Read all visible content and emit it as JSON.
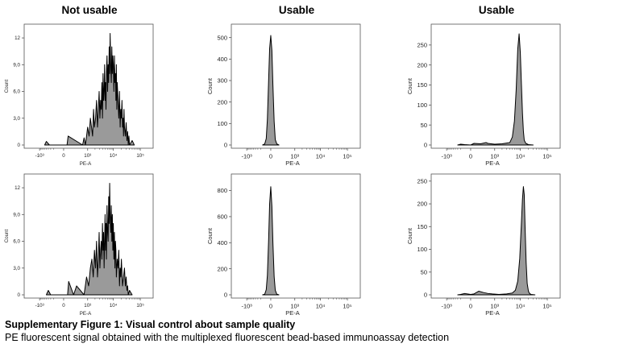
{
  "columns": [
    "Not usable",
    "Usable",
    "Usable"
  ],
  "caption": {
    "title": "Supplementary Figure 1: Visual control about sample quality",
    "subtitle": "PE fluorescent signal obtained with the multiplexed fluorescent bead-based immunoassay detection"
  },
  "colors": {
    "fill": "#9a9a9a",
    "stroke": "#000000",
    "frame": "#555555"
  },
  "chart_data": [
    {
      "type": "area",
      "panel": "row1-col1",
      "xlabel": "PE-A",
      "ylabel": "Count",
      "xticks": [
        {
          "pos": -1000,
          "label": "-10³"
        },
        {
          "pos": 0,
          "label": "0"
        },
        {
          "pos": 1000,
          "label": "10³"
        },
        {
          "pos": 10000,
          "label": "10⁴"
        },
        {
          "pos": 100000,
          "label": "10⁵"
        }
      ],
      "yticks": [
        {
          "v": 0,
          "label": "0"
        },
        {
          "v": 3,
          "label": "3,0"
        },
        {
          "v": 6,
          "label": "6,0"
        },
        {
          "v": 9,
          "label": "9,0"
        },
        {
          "v": 12,
          "label": "12"
        }
      ],
      "xlim": [
        -2000,
        150000
      ],
      "ylim": [
        0,
        13
      ],
      "x": [
        -600,
        -500,
        -350,
        50,
        70,
        600,
        700,
        800,
        900,
        1000,
        1150,
        1300,
        1450,
        1600,
        1750,
        1900,
        2100,
        2300,
        2500,
        2700,
        2900,
        3100,
        3300,
        3500,
        3700,
        3900,
        4100,
        4300,
        4500,
        4700,
        4900,
        5100,
        5300,
        5500,
        5800,
        6100,
        6400,
        6700,
        7000,
        7300,
        7600,
        8000,
        8400,
        8800,
        9200,
        9600,
        10000,
        10500,
        11000,
        11500,
        12000,
        12500,
        13000,
        13500,
        14000,
        15000,
        16000,
        17000,
        18000,
        19000,
        20000,
        21000,
        22000,
        23000,
        24000,
        25000,
        26000,
        28000,
        30000,
        32000,
        34000,
        36000,
        38000,
        40000,
        50000,
        60000
      ],
      "y": [
        0,
        0.4,
        0,
        0,
        1,
        0,
        0.8,
        0,
        1,
        2,
        1,
        3,
        2,
        1,
        4,
        2,
        3,
        5,
        2,
        4,
        6,
        3,
        5,
        4,
        7,
        3,
        8,
        5,
        6,
        9,
        5,
        7,
        4,
        8,
        10,
        6,
        9,
        7,
        11,
        8,
        12.5,
        9,
        7,
        11,
        8,
        10,
        9,
        6,
        10,
        7,
        8,
        5,
        9,
        4,
        7,
        5,
        3,
        6,
        2,
        4,
        3,
        5,
        2,
        3,
        1,
        4,
        2,
        1,
        2.5,
        0.5,
        1.5,
        0,
        1,
        0,
        0.5,
        0
      ]
    },
    {
      "type": "area",
      "panel": "row1-col2",
      "xlabel": "PE-A",
      "ylabel": "Count",
      "xticks": [
        {
          "pos": -1000,
          "label": "-10³"
        },
        {
          "pos": 0,
          "label": "0"
        },
        {
          "pos": 1000,
          "label": "10³"
        },
        {
          "pos": 10000,
          "label": "10⁴"
        },
        {
          "pos": 100000,
          "label": "10⁵"
        }
      ],
      "yticks": [
        {
          "v": 0,
          "label": "0"
        },
        {
          "v": 100,
          "label": "100"
        },
        {
          "v": 200,
          "label": "200"
        },
        {
          "v": 300,
          "label": "300"
        },
        {
          "v": 400,
          "label": "400"
        },
        {
          "v": 500,
          "label": "500"
        }
      ],
      "xlim": [
        -2000,
        150000
      ],
      "ylim": [
        0,
        540
      ],
      "x": [
        -150,
        -100,
        -70,
        -50,
        -30,
        -15,
        0,
        15,
        30,
        50,
        70,
        100,
        150
      ],
      "y": [
        0,
        5,
        30,
        120,
        300,
        450,
        510,
        440,
        280,
        110,
        25,
        5,
        0
      ]
    },
    {
      "type": "area",
      "panel": "row1-col3",
      "xlabel": "PE-A",
      "ylabel": "Count",
      "xticks": [
        {
          "pos": -1000,
          "label": "-10³"
        },
        {
          "pos": 0,
          "label": "0"
        },
        {
          "pos": 1000,
          "label": "10³"
        },
        {
          "pos": 10000,
          "label": "10⁴"
        },
        {
          "pos": 100000,
          "label": "10⁵"
        }
      ],
      "yticks": [
        {
          "v": 0,
          "label": "0"
        },
        {
          "v": 50,
          "label": "50"
        },
        {
          "v": 100,
          "label": "100"
        },
        {
          "v": 150,
          "label": "150"
        },
        {
          "v": 200,
          "label": "200"
        },
        {
          "v": 250,
          "label": "250"
        }
      ],
      "xlim": [
        -2000,
        150000
      ],
      "ylim": [
        0,
        290
      ],
      "x": [
        -300,
        -200,
        -100,
        0,
        50,
        200,
        400,
        500,
        700,
        1000,
        2000,
        4000,
        5000,
        6000,
        7000,
        8000,
        9000,
        10000,
        11000,
        12000,
        13000,
        14000,
        16000,
        20000,
        30000
      ],
      "y": [
        0,
        2,
        1,
        0,
        4,
        3,
        6,
        4,
        3,
        2,
        3,
        6,
        20,
        60,
        140,
        240,
        278,
        230,
        150,
        80,
        35,
        12,
        4,
        1,
        0
      ]
    },
    {
      "type": "area",
      "panel": "row2-col1",
      "xlabel": "PE-A",
      "ylabel": "Count",
      "xticks": [
        {
          "pos": -1000,
          "label": "-10³"
        },
        {
          "pos": 0,
          "label": "0"
        },
        {
          "pos": 1000,
          "label": "10³"
        },
        {
          "pos": 10000,
          "label": "10⁴"
        },
        {
          "pos": 100000,
          "label": "10⁵"
        }
      ],
      "yticks": [
        {
          "v": 0,
          "label": "0"
        },
        {
          "v": 3,
          "label": "3,0"
        },
        {
          "v": 6,
          "label": "6,0"
        },
        {
          "v": 9,
          "label": "9,0"
        },
        {
          "v": 12,
          "label": "12"
        }
      ],
      "xlim": [
        -2000,
        150000
      ],
      "ylim": [
        0,
        13
      ],
      "x": [
        -500,
        -400,
        -300,
        60,
        80,
        200,
        300,
        700,
        900,
        1100,
        1300,
        1500,
        1700,
        1900,
        2100,
        2300,
        2500,
        2700,
        2900,
        3100,
        3300,
        3500,
        3700,
        3900,
        4100,
        4300,
        4500,
        4700,
        4900,
        5100,
        5300,
        5500,
        5800,
        6100,
        6400,
        6700,
        7000,
        7300,
        7600,
        8000,
        8400,
        8800,
        9200,
        9600,
        10000,
        10500,
        11000,
        11500,
        12000,
        12500,
        13000,
        14000,
        15000,
        16000,
        17000,
        18000,
        19000,
        20000,
        22000,
        24000,
        26000,
        28000,
        30000,
        32000,
        34000,
        36000,
        40000,
        50000
      ],
      "y": [
        0,
        0.5,
        0,
        0,
        1.5,
        0,
        1,
        0,
        2,
        1,
        3,
        4,
        2,
        5,
        3,
        6,
        2,
        4,
        7,
        3,
        5,
        6,
        4,
        8,
        5,
        7,
        3,
        6,
        9,
        5,
        8,
        4,
        10,
        7,
        6,
        11,
        8,
        12.5,
        9,
        7,
        10,
        6,
        9,
        5,
        8,
        4,
        7,
        3,
        6,
        5,
        2,
        4,
        3,
        5,
        1,
        3,
        2,
        4,
        1,
        2,
        3,
        1,
        2,
        0.5,
        1,
        0,
        0.5,
        0
      ]
    },
    {
      "type": "area",
      "panel": "row2-col2",
      "xlabel": "PE-A",
      "ylabel": "Count",
      "xticks": [
        {
          "pos": -1000,
          "label": "-10³"
        },
        {
          "pos": 0,
          "label": "0"
        },
        {
          "pos": 1000,
          "label": "10³"
        },
        {
          "pos": 10000,
          "label": "10⁴"
        },
        {
          "pos": 100000,
          "label": "10⁵"
        }
      ],
      "yticks": [
        {
          "v": 0,
          "label": "0"
        },
        {
          "v": 200,
          "label": "200"
        },
        {
          "v": 400,
          "label": "400"
        },
        {
          "v": 600,
          "label": "600"
        },
        {
          "v": 800,
          "label": "800"
        }
      ],
      "xlim": [
        -2000,
        150000
      ],
      "ylim": [
        0,
        890
      ],
      "x": [
        -150,
        -100,
        -70,
        -50,
        -30,
        -15,
        0,
        15,
        30,
        50,
        70,
        100,
        150
      ],
      "y": [
        0,
        5,
        40,
        150,
        420,
        700,
        830,
        680,
        400,
        140,
        35,
        5,
        0
      ]
    },
    {
      "type": "area",
      "panel": "row2-col3",
      "xlabel": "PE-A",
      "ylabel": "Count",
      "xticks": [
        {
          "pos": -1000,
          "label": "-10³"
        },
        {
          "pos": 0,
          "label": "0"
        },
        {
          "pos": 1000,
          "label": "10³"
        },
        {
          "pos": 10000,
          "label": "10⁴"
        },
        {
          "pos": 100000,
          "label": "10⁵"
        }
      ],
      "yticks": [
        {
          "v": 0,
          "label": "0"
        },
        {
          "v": 50,
          "label": "50"
        },
        {
          "v": 100,
          "label": "100"
        },
        {
          "v": 150,
          "label": "150"
        },
        {
          "v": 200,
          "label": "200"
        },
        {
          "v": 250,
          "label": "250"
        }
      ],
      "xlim": [
        -2000,
        150000
      ],
      "ylim": [
        0,
        255
      ],
      "x": [
        -300,
        -200,
        -100,
        0,
        50,
        150,
        300,
        500,
        800,
        1500,
        3000,
        5000,
        6500,
        8000,
        9500,
        11000,
        12000,
        13000,
        14000,
        15000,
        16500,
        18000,
        20000,
        22000,
        25000,
        35000
      ],
      "y": [
        0,
        1,
        3,
        1,
        2,
        8,
        5,
        3,
        2,
        1,
        2,
        4,
        10,
        30,
        80,
        160,
        210,
        238,
        220,
        150,
        70,
        25,
        8,
        3,
        1,
        0
      ]
    }
  ]
}
